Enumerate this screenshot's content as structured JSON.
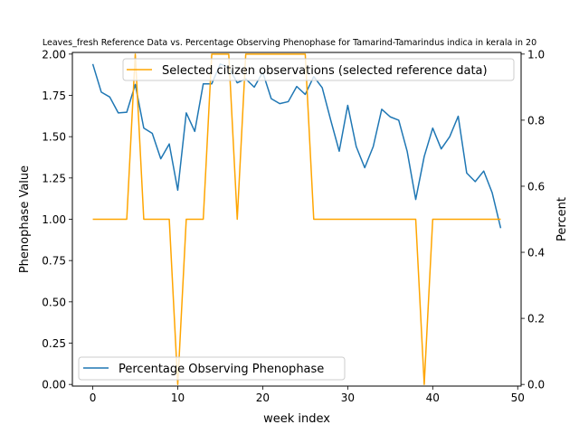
{
  "chart_data": {
    "type": "line",
    "title": "Leaves_fresh Reference Data vs. Percentage Observing Phenophase for Tamarind-Tamarindus indica in kerala in 20",
    "xlabel": "week index",
    "ylabel_left": "Phenophase Value",
    "ylabel_right": "Percent",
    "xlim": [
      -2.4,
      50.4
    ],
    "ylim_left": [
      -0.01,
      2.01
    ],
    "ylim_right": [
      -0.005,
      1.005
    ],
    "x_ticks": [
      0,
      10,
      20,
      30,
      40,
      50
    ],
    "y_ticks_left": [
      0.0,
      0.25,
      0.5,
      0.75,
      1.0,
      1.25,
      1.5,
      1.75,
      2.0
    ],
    "y_ticks_right": [
      0.0,
      0.2,
      0.4,
      0.6,
      0.8,
      1.0
    ],
    "x_tick_labels": [
      "0",
      "10",
      "20",
      "30",
      "40",
      "50"
    ],
    "y_tick_labels_left": [
      "0.00",
      "0.25",
      "0.50",
      "0.75",
      "1.00",
      "1.25",
      "1.50",
      "1.75",
      "2.00"
    ],
    "y_tick_labels_right": [
      "0.0",
      "0.2",
      "0.4",
      "0.6",
      "0.8",
      "1.0"
    ],
    "series": [
      {
        "name": "Percentage Observing Phenophase",
        "axis": "right",
        "color": "#1f77b4",
        "legend_position": "lower-left",
        "x": [
          0,
          1,
          2,
          3,
          4,
          5,
          6,
          7,
          8,
          9,
          10,
          11,
          12,
          13,
          14,
          15,
          16,
          17,
          18,
          19,
          20,
          21,
          22,
          23,
          24,
          25,
          26,
          27,
          28,
          29,
          30,
          31,
          32,
          33,
          34,
          35,
          36,
          37,
          38,
          39,
          40,
          41,
          42,
          43,
          44,
          45,
          46,
          47,
          48
        ],
        "y": [
          0.97,
          0.885,
          0.87,
          0.822,
          0.824,
          0.908,
          0.776,
          0.76,
          0.683,
          0.728,
          0.588,
          0.822,
          0.766,
          0.91,
          0.91,
          0.97,
          0.96,
          0.913,
          0.925,
          0.9,
          0.945,
          0.865,
          0.85,
          0.856,
          0.902,
          0.878,
          0.932,
          0.898,
          0.8,
          0.706,
          0.845,
          0.72,
          0.656,
          0.72,
          0.833,
          0.81,
          0.8,
          0.705,
          0.56,
          0.69,
          0.776,
          0.713,
          0.75,
          0.812,
          0.64,
          0.614,
          0.646,
          0.58,
          0.473
        ]
      },
      {
        "name": "Selected citizen observations (selected reference data)",
        "axis": "left",
        "color": "#ffa500",
        "legend_position": "upper-right",
        "x": [
          0,
          1,
          2,
          3,
          4,
          5,
          6,
          7,
          8,
          9,
          10,
          11,
          12,
          13,
          14,
          15,
          16,
          17,
          18,
          19,
          20,
          21,
          22,
          23,
          24,
          25,
          26,
          27,
          28,
          29,
          30,
          31,
          32,
          33,
          34,
          35,
          36,
          37,
          38,
          39,
          40,
          41,
          42,
          43,
          44,
          45,
          46,
          47,
          48
        ],
        "y": [
          1,
          1,
          1,
          1,
          1,
          2,
          1,
          1,
          1,
          1,
          0,
          1,
          1,
          1,
          2,
          2,
          2,
          1,
          2,
          2,
          2,
          2,
          2,
          2,
          2,
          2,
          1,
          1,
          1,
          1,
          1,
          1,
          1,
          1,
          1,
          1,
          1,
          1,
          1,
          0,
          1,
          1,
          1,
          1,
          1,
          1,
          1,
          1,
          1
        ]
      }
    ],
    "grid": false
  }
}
